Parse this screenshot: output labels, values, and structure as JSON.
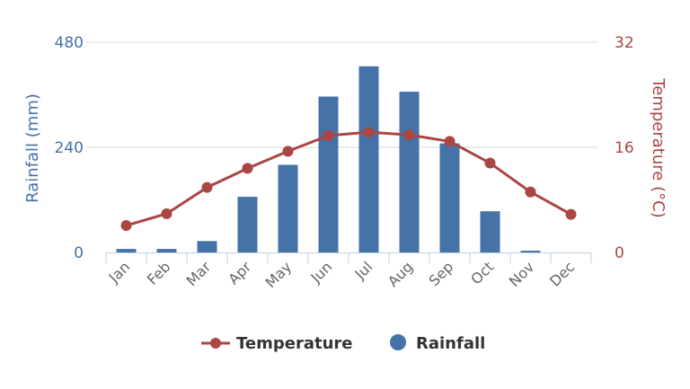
{
  "chart_data": {
    "type": "bar",
    "categories": [
      "Jan",
      "Feb",
      "Mar",
      "Apr",
      "May",
      "Jun",
      "Jul",
      "Aug",
      "Sep",
      "Oct",
      "Nov",
      "Dec"
    ],
    "series": [
      {
        "name": "Rainfall",
        "type": "bar",
        "axis": "left",
        "color": "#4572a7",
        "values": [
          8,
          8,
          26,
          127,
          200,
          356,
          425,
          367,
          249,
          94,
          4,
          0
        ]
      },
      {
        "name": "Temperature",
        "type": "line",
        "axis": "right",
        "color": "#aa4643",
        "values": [
          4.1,
          5.9,
          9.9,
          12.8,
          15.4,
          17.8,
          18.3,
          17.9,
          16.9,
          13.6,
          9.2,
          5.8
        ]
      }
    ],
    "yaxis_left": {
      "label": "Rainfall (mm)",
      "ticks": [
        0,
        240,
        480
      ],
      "ylim": [
        0,
        480
      ]
    },
    "yaxis_right": {
      "label": "Temperature (°C)",
      "ticks": [
        0,
        16,
        32
      ],
      "ylim": [
        0,
        32
      ]
    },
    "grid": true,
    "legend_position": "bottom-center"
  }
}
